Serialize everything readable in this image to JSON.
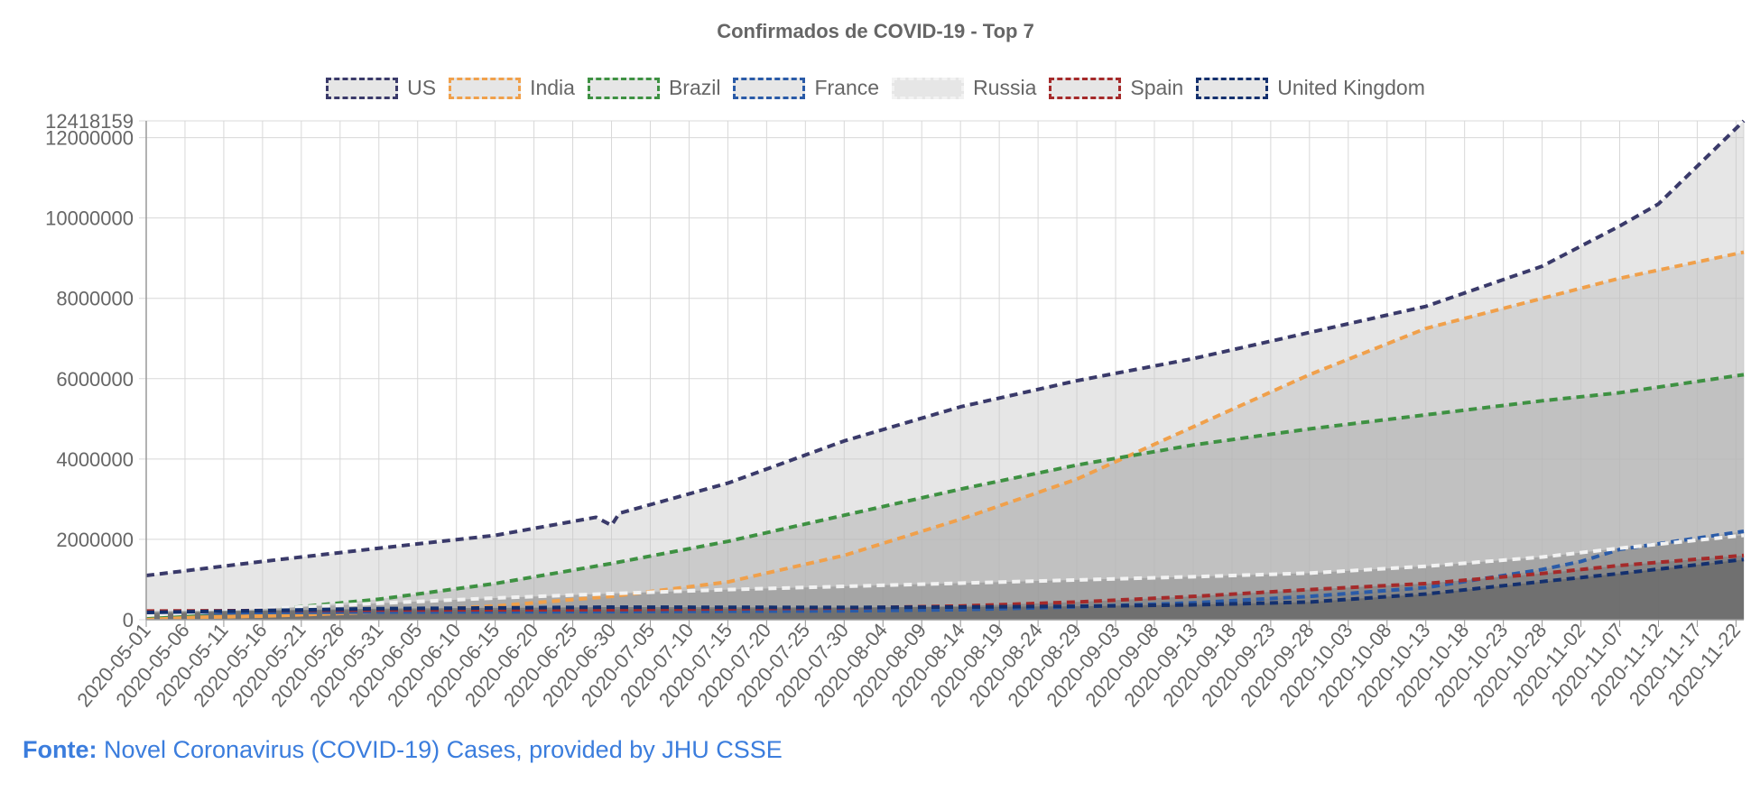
{
  "colors": {
    "accent_link": "#3b7ddd",
    "text": "#666666",
    "grid": "#d8d8d8",
    "axis": "#999999"
  },
  "source": {
    "prefix": "Fonte:",
    "link_text": "Novel Coronavirus (COVID-19) Cases, provided by JHU CSSE"
  },
  "chart_data": {
    "type": "area",
    "title": "Confirmados de COVID-19 - Top 7",
    "xlabel": "",
    "ylabel": "",
    "legend_position": "top",
    "grid": true,
    "x_start": "2020-05-01",
    "x_end": "2020-11-23",
    "ylim": [
      0,
      12418159
    ],
    "yticks": [
      0,
      2000000,
      4000000,
      6000000,
      8000000,
      10000000,
      12000000,
      12418159
    ],
    "ytick_labels": [
      "0",
      "2000000",
      "4000000",
      "6000000",
      "8000000",
      "10000000",
      "12000000",
      "12418159"
    ],
    "xtick_labels": [
      "2020-05-01",
      "2020-05-06",
      "2020-05-11",
      "2020-05-16",
      "2020-05-21",
      "2020-05-26",
      "2020-05-31",
      "2020-06-05",
      "2020-06-10",
      "2020-06-15",
      "2020-06-20",
      "2020-06-25",
      "2020-06-30",
      "2020-07-05",
      "2020-07-10",
      "2020-07-15",
      "2020-07-20",
      "2020-07-25",
      "2020-07-30",
      "2020-08-04",
      "2020-08-09",
      "2020-08-14",
      "2020-08-19",
      "2020-08-24",
      "2020-08-29",
      "2020-09-03",
      "2020-09-08",
      "2020-09-13",
      "2020-09-18",
      "2020-09-23",
      "2020-09-28",
      "2020-10-03",
      "2020-10-08",
      "2020-10-13",
      "2020-10-18",
      "2020-10-23",
      "2020-10-28",
      "2020-11-02",
      "2020-11-07",
      "2020-11-12",
      "2020-11-17",
      "2020-11-22"
    ],
    "series": [
      {
        "name": "US",
        "color": "#3a3a6a",
        "fill": "rgba(200,200,200,0.45)",
        "points": [
          [
            "2020-05-01",
            1100000
          ],
          [
            "2020-05-16",
            1450000
          ],
          [
            "2020-05-31",
            1780000
          ],
          [
            "2020-06-15",
            2100000
          ],
          [
            "2020-06-28",
            2550000
          ],
          [
            "2020-06-30",
            2350000
          ],
          [
            "2020-07-01",
            2650000
          ],
          [
            "2020-07-15",
            3400000
          ],
          [
            "2020-07-30",
            4450000
          ],
          [
            "2020-08-14",
            5300000
          ],
          [
            "2020-08-29",
            5950000
          ],
          [
            "2020-09-13",
            6500000
          ],
          [
            "2020-09-28",
            7150000
          ],
          [
            "2020-10-13",
            7800000
          ],
          [
            "2020-10-28",
            8800000
          ],
          [
            "2020-11-07",
            9800000
          ],
          [
            "2020-11-12",
            10350000
          ],
          [
            "2020-11-23",
            12418159
          ]
        ]
      },
      {
        "name": "India",
        "color": "#f0a04b",
        "fill": "rgba(190,190,190,0.45)",
        "points": [
          [
            "2020-05-01",
            35000
          ],
          [
            "2020-05-16",
            90000
          ],
          [
            "2020-05-31",
            190000
          ],
          [
            "2020-06-15",
            340000
          ],
          [
            "2020-06-30",
            580000
          ],
          [
            "2020-07-15",
            940000
          ],
          [
            "2020-07-30",
            1600000
          ],
          [
            "2020-08-14",
            2500000
          ],
          [
            "2020-08-29",
            3500000
          ],
          [
            "2020-09-13",
            4800000
          ],
          [
            "2020-09-28",
            6100000
          ],
          [
            "2020-10-13",
            7250000
          ],
          [
            "2020-10-28",
            8000000
          ],
          [
            "2020-11-07",
            8500000
          ],
          [
            "2020-11-23",
            9150000
          ]
        ]
      },
      {
        "name": "Brazil",
        "color": "#3e9142",
        "fill": "rgba(170,170,170,0.45)",
        "points": [
          [
            "2020-05-01",
            90000
          ],
          [
            "2020-05-16",
            230000
          ],
          [
            "2020-05-31",
            510000
          ],
          [
            "2020-06-15",
            900000
          ],
          [
            "2020-06-30",
            1400000
          ],
          [
            "2020-07-15",
            1950000
          ],
          [
            "2020-07-30",
            2600000
          ],
          [
            "2020-08-14",
            3250000
          ],
          [
            "2020-08-29",
            3850000
          ],
          [
            "2020-09-13",
            4350000
          ],
          [
            "2020-09-28",
            4750000
          ],
          [
            "2020-10-13",
            5100000
          ],
          [
            "2020-10-28",
            5450000
          ],
          [
            "2020-11-07",
            5650000
          ],
          [
            "2020-11-23",
            6100000
          ]
        ]
      },
      {
        "name": "France",
        "color": "#2a5ba8",
        "fill": "rgba(150,150,150,0.45)",
        "points": [
          [
            "2020-05-01",
            170000
          ],
          [
            "2020-05-31",
            190000
          ],
          [
            "2020-06-30",
            200000
          ],
          [
            "2020-07-30",
            220000
          ],
          [
            "2020-08-14",
            250000
          ],
          [
            "2020-08-29",
            320000
          ],
          [
            "2020-09-13",
            420000
          ],
          [
            "2020-09-28",
            580000
          ],
          [
            "2020-10-13",
            800000
          ],
          [
            "2020-10-28",
            1250000
          ],
          [
            "2020-11-02",
            1450000
          ],
          [
            "2020-11-07",
            1750000
          ],
          [
            "2020-11-23",
            2200000
          ]
        ]
      },
      {
        "name": "Russia",
        "color": "#f2f2f2",
        "fill": "rgba(130,130,130,0.45)",
        "points": [
          [
            "2020-05-01",
            110000
          ],
          [
            "2020-05-16",
            270000
          ],
          [
            "2020-05-31",
            410000
          ],
          [
            "2020-06-15",
            540000
          ],
          [
            "2020-06-30",
            650000
          ],
          [
            "2020-07-15",
            750000
          ],
          [
            "2020-07-30",
            830000
          ],
          [
            "2020-08-14",
            910000
          ],
          [
            "2020-08-29",
            990000
          ],
          [
            "2020-09-13",
            1070000
          ],
          [
            "2020-09-28",
            1160000
          ],
          [
            "2020-10-13",
            1330000
          ],
          [
            "2020-10-28",
            1560000
          ],
          [
            "2020-11-07",
            1780000
          ],
          [
            "2020-11-23",
            2100000
          ]
        ]
      },
      {
        "name": "Spain",
        "color": "#a52a2a",
        "fill": "rgba(110,110,110,0.45)",
        "points": [
          [
            "2020-05-01",
            215000
          ],
          [
            "2020-05-31",
            240000
          ],
          [
            "2020-06-30",
            250000
          ],
          [
            "2020-07-30",
            290000
          ],
          [
            "2020-08-14",
            340000
          ],
          [
            "2020-08-29",
            440000
          ],
          [
            "2020-09-13",
            580000
          ],
          [
            "2020-09-28",
            750000
          ],
          [
            "2020-10-13",
            900000
          ],
          [
            "2020-10-28",
            1150000
          ],
          [
            "2020-11-07",
            1350000
          ],
          [
            "2020-11-23",
            1600000
          ]
        ]
      },
      {
        "name": "United Kingdom",
        "color": "#14306e",
        "fill": "rgba(90,90,90,0.5)",
        "points": [
          [
            "2020-05-01",
            180000
          ],
          [
            "2020-05-31",
            275000
          ],
          [
            "2020-06-30",
            313000
          ],
          [
            "2020-07-30",
            305000
          ],
          [
            "2020-08-14",
            315000
          ],
          [
            "2020-08-29",
            335000
          ],
          [
            "2020-09-13",
            370000
          ],
          [
            "2020-09-28",
            440000
          ],
          [
            "2020-10-13",
            640000
          ],
          [
            "2020-10-28",
            950000
          ],
          [
            "2020-11-07",
            1150000
          ],
          [
            "2020-11-23",
            1500000
          ]
        ]
      }
    ]
  }
}
